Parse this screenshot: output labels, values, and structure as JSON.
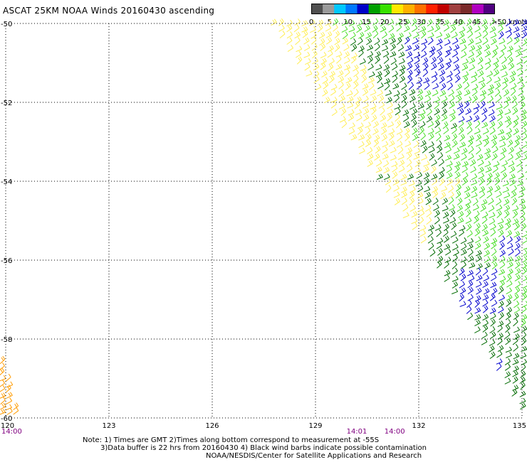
{
  "title": "ASCAT 25KM NOAA Winds 20160430 ascending",
  "colorbar": {
    "labels": [
      "0",
      "5",
      "10",
      "15",
      "20",
      "25",
      "30",
      "35",
      "40",
      "45",
      ">50 knots"
    ],
    "colors": [
      "#505050",
      "#9a9a9a",
      "#00c8ff",
      "#0078ff",
      "#0000c8",
      "#00a000",
      "#38e000",
      "#ffe800",
      "#ffb000",
      "#ff7000",
      "#ff2000",
      "#c00000",
      "#a04040",
      "#7a2a2a",
      "#b000c0",
      "#500080"
    ]
  },
  "map": {
    "lat_labels": [
      "-50",
      "-52",
      "-54",
      "-56",
      "-58",
      "-60"
    ],
    "lon_labels": [
      "120",
      "123",
      "126",
      "129",
      "132",
      "135"
    ],
    "time_labels": [
      {
        "text": "14:00",
        "lon": 120.1
      },
      {
        "text": "14:01",
        "lon": 130.2
      },
      {
        "text": "14:00",
        "lon": 131.3
      }
    ],
    "barb_colors": {
      "light_green": "#44dd22",
      "dark_green": "#006b00",
      "blue": "#0000cc",
      "yellow": "#ffee55",
      "orange": "#ff9b00"
    }
  },
  "notes": {
    "line1": "Note: 1) Times are GMT 2)Times along bottom correspond to measurement at -55S",
    "line2": "3)Data buffer is 22 hrs from 20160430 4) Black wind barbs indicate possible contamination",
    "line3": "NOAA/NESDIS/Center for Satellite Applications and Research"
  }
}
